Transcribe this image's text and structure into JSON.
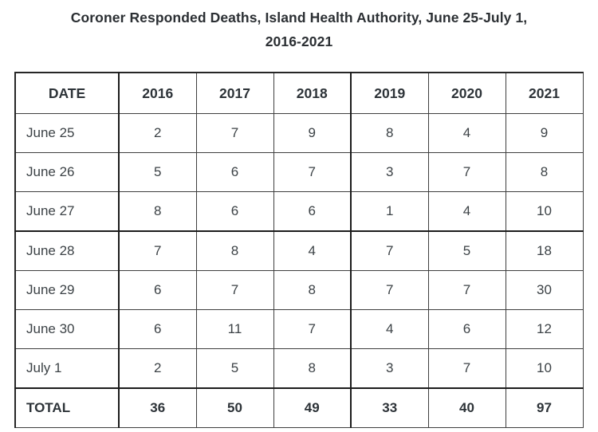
{
  "chart_data": {
    "type": "table",
    "title": "Coroner Responded Deaths, Island Health Authority, June 25-July 1, 2016-2021",
    "title_lines": [
      "Coroner Responded Deaths, Island Health Authority, June 25-July 1,",
      "2016-2021"
    ],
    "columns": [
      "DATE",
      "2016",
      "2017",
      "2018",
      "2019",
      "2020",
      "2021"
    ],
    "rows": [
      {
        "label": "June 25",
        "values": [
          2,
          7,
          9,
          8,
          4,
          9
        ]
      },
      {
        "label": "June 26",
        "values": [
          5,
          6,
          7,
          3,
          7,
          8
        ]
      },
      {
        "label": "June 27",
        "values": [
          8,
          6,
          6,
          1,
          4,
          10
        ]
      },
      {
        "label": "June 28",
        "values": [
          7,
          8,
          4,
          7,
          5,
          18
        ]
      },
      {
        "label": "June 29",
        "values": [
          6,
          7,
          8,
          7,
          7,
          30
        ]
      },
      {
        "label": "June 30",
        "values": [
          6,
          11,
          7,
          4,
          6,
          12
        ]
      },
      {
        "label": "July 1",
        "values": [
          2,
          5,
          8,
          3,
          7,
          10
        ]
      }
    ],
    "total_row": {
      "label": "TOTAL",
      "values": [
        36,
        50,
        49,
        33,
        40,
        97
      ]
    },
    "layout": {
      "grid": "on",
      "value_alignment": "center",
      "label_alignment": "left"
    }
  },
  "colors": {
    "background": "#ffffff",
    "border": "#3f3f3f",
    "border_heavy": "#1c1c1c",
    "title_text": "#2b2f33",
    "header_text": "#2d3338",
    "body_text": "#3c4246"
  }
}
